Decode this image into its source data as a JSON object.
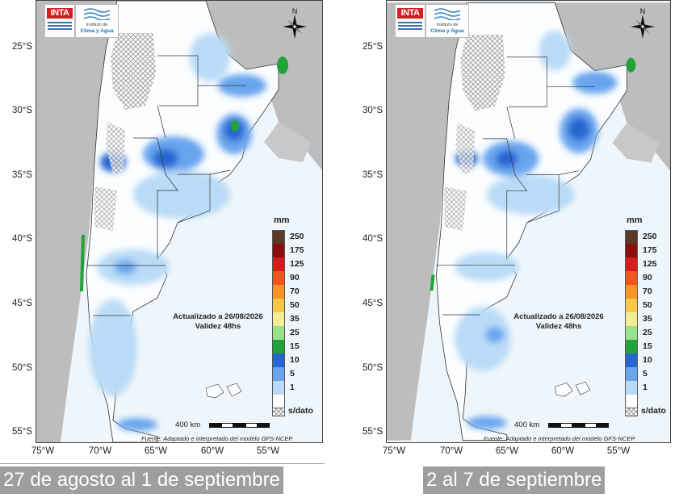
{
  "maps": [
    {
      "caption": "27 de agosto al 1 de septiembre",
      "update_text": "Actualizado a 26/08/2026",
      "validity_text": "Validez 48hs"
    },
    {
      "caption": "2 al 7 de septiembre",
      "update_text": "Actualizado a 26/08/2026",
      "validity_text": "Validez 48hs"
    }
  ],
  "logos": {
    "inta": "INTA",
    "clima_line1": "Instituto de",
    "clima_line2": "Clima y Agua"
  },
  "compass_label": "N",
  "latitude_labels": [
    "25°S",
    "30°S",
    "35°S",
    "40°S",
    "45°S",
    "50°S",
    "55°S"
  ],
  "longitude_labels": [
    "75°W",
    "70°W",
    "65°W",
    "60°W",
    "55°W"
  ],
  "legend": {
    "unit": "mm",
    "entries": [
      {
        "label": "250",
        "color": "#5a3a26"
      },
      {
        "label": "175",
        "color": "#8b0f0f"
      },
      {
        "label": "125",
        "color": "#d81c1c"
      },
      {
        "label": "90",
        "color": "#f0561e"
      },
      {
        "label": "70",
        "color": "#f79425"
      },
      {
        "label": "50",
        "color": "#f8c84b"
      },
      {
        "label": "35",
        "color": "#f3ee95"
      },
      {
        "label": "25",
        "color": "#99e38a"
      },
      {
        "label": "15",
        "color": "#22a33a"
      },
      {
        "label": "10",
        "color": "#2567d2"
      },
      {
        "label": "5",
        "color": "#69a5ef"
      },
      {
        "label": "1",
        "color": "#b9dbf7"
      },
      {
        "label": "",
        "color": "#ffffff"
      }
    ],
    "no_data_label": "s/dato"
  },
  "scale_label": "400 km",
  "source_text": "Fuente: Adaptado e interpretado del modelo GFS-NCEP."
}
